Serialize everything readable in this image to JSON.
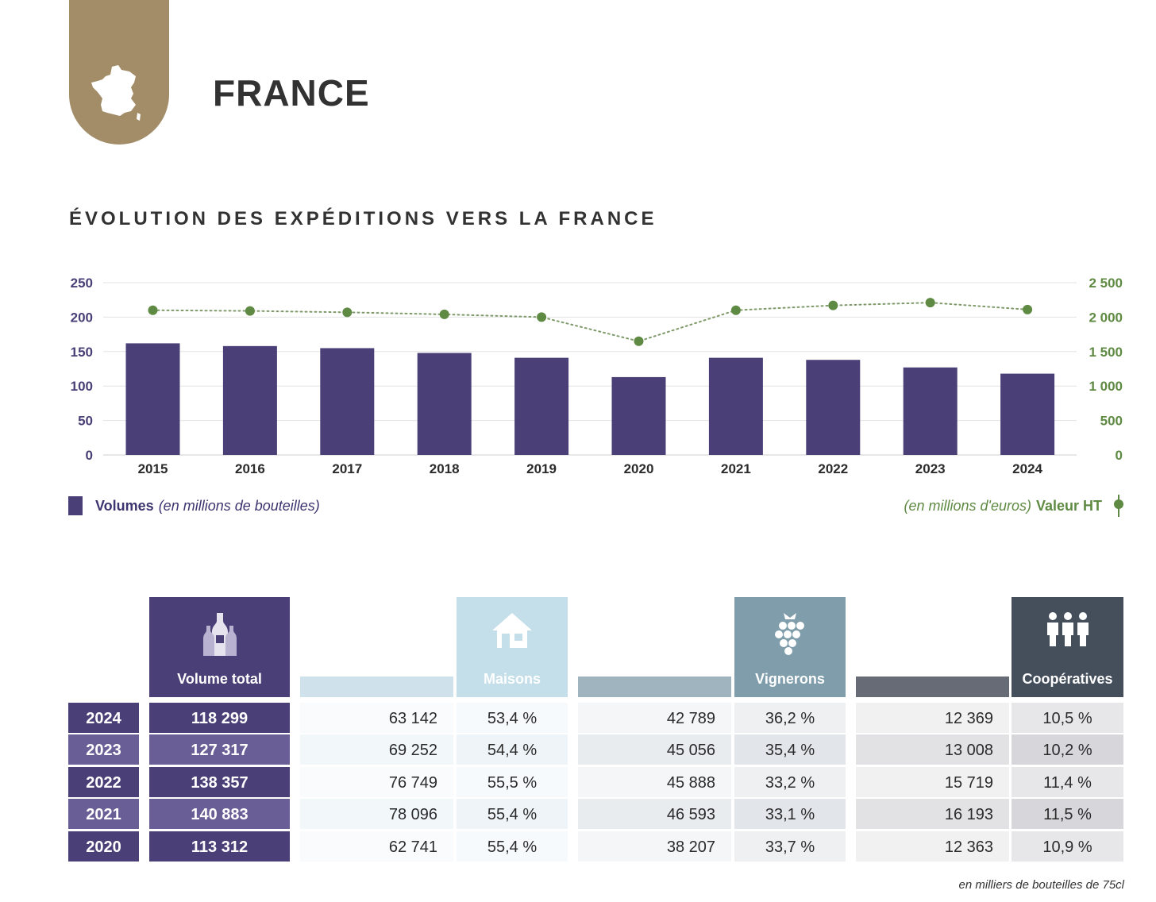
{
  "header": {
    "country_icon": "france-map-icon",
    "title": "FRANCE"
  },
  "section_title": "ÉVOLUTION DES EXPÉDITIONS VERS LA FRANCE",
  "chart_data": {
    "type": "bar",
    "title": "ÉVOLUTION DES EXPÉDITIONS VERS LA FRANCE",
    "categories": [
      "2015",
      "2016",
      "2017",
      "2018",
      "2019",
      "2020",
      "2021",
      "2022",
      "2023",
      "2024"
    ],
    "series": [
      {
        "name": "Volumes",
        "type": "bar",
        "axis": "left",
        "color": "#4a4077",
        "values": [
          162,
          158,
          155,
          148,
          141,
          113,
          141,
          138,
          127,
          118
        ]
      },
      {
        "name": "Valeur HT",
        "type": "line",
        "axis": "right",
        "color": "#5f8a43",
        "line_style": "dotted",
        "values": [
          2100,
          2090,
          2070,
          2040,
          2000,
          1650,
          2100,
          2170,
          2210,
          2110
        ]
      }
    ],
    "y_left": {
      "ylim": [
        0,
        250
      ],
      "ticks": [
        "0",
        "50",
        "100",
        "150",
        "200",
        "250"
      ]
    },
    "y_right": {
      "ylim": [
        0,
        2500
      ],
      "ticks": [
        "0",
        "500",
        "1 000",
        "1 500",
        "2 000",
        "2 500"
      ]
    },
    "grid": true,
    "legend_left": {
      "strong": "Volumes",
      "em": "(en millions de bouteilles)"
    },
    "legend_right": {
      "em": "(en millions d'euros)",
      "strong": "Valeur HT"
    }
  },
  "table": {
    "colors": {
      "volume": "#4a4077",
      "volume_alt": "#6a5e96",
      "maisons": "#c5dfea",
      "vignerons": "#7f9dab",
      "cooperatives": "#454e5b"
    },
    "headers": {
      "volume": {
        "label": "Volume total",
        "icon": "champagne-bottles-icon"
      },
      "maisons": {
        "label": "Maisons",
        "icon": "house-icon"
      },
      "vignerons": {
        "label": "Vignerons",
        "icon": "grapes-icon"
      },
      "cooperatives": {
        "label": "Coopératives",
        "icon": "people-icon"
      }
    },
    "rows": [
      {
        "year": "2024",
        "volume": "118 299",
        "maisons": "63 142",
        "maisons_pct": "53,4 %",
        "vignerons": "42 789",
        "vignerons_pct": "36,2 %",
        "coop": "12 369",
        "coop_pct": "10,5 %"
      },
      {
        "year": "2023",
        "volume": "127 317",
        "maisons": "69 252",
        "maisons_pct": "54,4 %",
        "vignerons": "45 056",
        "vignerons_pct": "35,4 %",
        "coop": "13 008",
        "coop_pct": "10,2 %"
      },
      {
        "year": "2022",
        "volume": "138 357",
        "maisons": "76 749",
        "maisons_pct": "55,5 %",
        "vignerons": "45 888",
        "vignerons_pct": "33,2 %",
        "coop": "15 719",
        "coop_pct": "11,4 %"
      },
      {
        "year": "2021",
        "volume": "140 883",
        "maisons": "78 096",
        "maisons_pct": "55,4 %",
        "vignerons": "46 593",
        "vignerons_pct": "33,1 %",
        "coop": "16 193",
        "coop_pct": "11,5 %"
      },
      {
        "year": "2020",
        "volume": "113 312",
        "maisons": "62 741",
        "maisons_pct": "55,4 %",
        "vignerons": "38 207",
        "vignerons_pct": "33,7 %",
        "coop": "12 363",
        "coop_pct": "10,9 %"
      }
    ],
    "footnote": "en milliers de bouteilles de 75cl"
  }
}
